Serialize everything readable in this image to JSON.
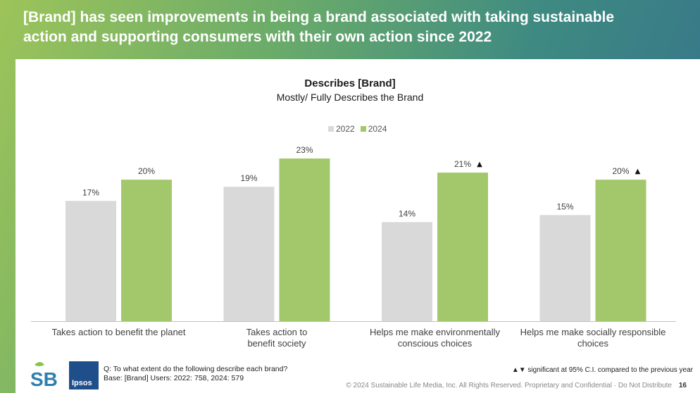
{
  "slide": {
    "title": "[Brand] has seen improvements in being a brand associated with taking sustainable action and supporting consumers with their own action since 2022",
    "page_number": "16",
    "question_line1": "Q: To what extent do the following describe each brand?",
    "question_line2": "Base: [Brand] Users: 2022: 758, 2024: 579",
    "significance_note": "▲▼ significant at 95% C.I. compared to the previous year",
    "copyright": "© 2024 Sustainable Life Media, Inc. All Rights Reserved. Proprietary and Confidential · Do Not Distribute",
    "logos": {
      "sb_text": "SB",
      "ipsos_text": "Ipsos"
    }
  },
  "chart_data": {
    "type": "bar",
    "title": "Describes [Brand]",
    "subtitle": "Mostly/ Fully Describes the Brand",
    "categories": [
      [
        "Takes action to benefit the planet"
      ],
      [
        "Takes action to",
        "benefit society"
      ],
      [
        "Helps me make environmentally",
        "conscious choices"
      ],
      [
        "Helps me make socially responsible",
        "choices"
      ]
    ],
    "series": [
      {
        "name": "2022",
        "values": [
          17,
          19,
          14,
          15
        ],
        "color": "#d9d9d9",
        "value_labels": [
          "17%",
          "19%",
          "14%",
          "15%"
        ]
      },
      {
        "name": "2024",
        "values": [
          20,
          23,
          21,
          20
        ],
        "color": "#a3c86b",
        "value_labels": [
          "20%",
          "23%",
          "21%",
          "20%"
        ]
      }
    ],
    "significance": {
      "series": "2024",
      "markers": [
        "",
        "",
        "▲",
        "▲"
      ]
    },
    "ylim": [
      0,
      23
    ],
    "grid": false,
    "legend_position": "top-center"
  }
}
